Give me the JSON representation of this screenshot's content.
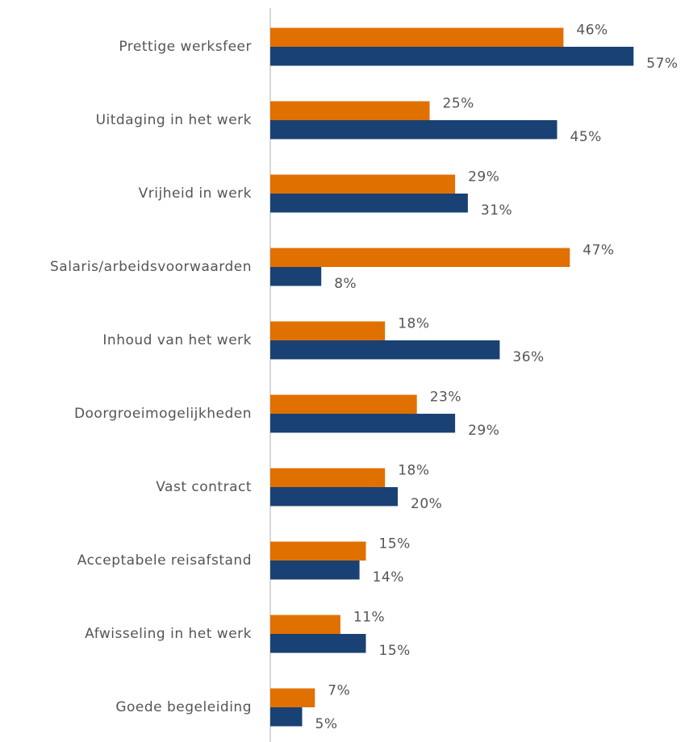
{
  "chart_data": {
    "type": "bar",
    "orientation": "horizontal",
    "categories": [
      "Prettige werksfeer",
      "Uitdaging in het werk",
      "Vrijheid in werk",
      "Salaris/arbeidsvoorwaarden",
      "Inhoud van het werk",
      "Doorgroeimogelijkheden",
      "Vast contract",
      "Acceptabele reisafstand",
      "Afwisseling in het werk",
      "Goede begeleiding"
    ],
    "series": [
      {
        "color": "#e07000",
        "values": [
          46,
          25,
          29,
          47,
          18,
          23,
          18,
          15,
          11,
          7
        ],
        "value_labels": [
          "46%",
          "25%",
          "29%",
          "47%",
          "18%",
          "23%",
          "18%",
          "15%",
          "11%",
          "7%"
        ]
      },
      {
        "color": "#1a4173",
        "values": [
          57,
          45,
          31,
          8,
          36,
          29,
          20,
          14,
          15,
          5
        ],
        "value_labels": [
          "57%",
          "45%",
          "31%",
          "8%",
          "36%",
          "29%",
          "20%",
          "14%",
          "15%",
          "5%"
        ]
      }
    ],
    "xlim": [
      0,
      65
    ]
  }
}
